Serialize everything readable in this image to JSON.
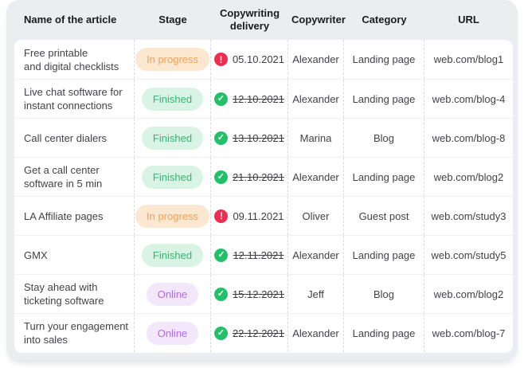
{
  "colors": {
    "card_bg": "#ecedf1",
    "in_progress_bg": "#fce7d1",
    "in_progress_text": "#f4a156",
    "finished_bg": "#d9f4e4",
    "finished_text": "#33b571",
    "online_bg": "#f3e7fb",
    "online_text": "#b267ee",
    "overdue_icon": "#ee2d4f",
    "done_icon": "#23c06a"
  },
  "table": {
    "columns": [
      "Name of the article",
      "Stage",
      "Copywriting delivery",
      "Copywriter",
      "Category",
      "URL"
    ],
    "rows": [
      {
        "name_lines": [
          "Free printable",
          "and digital checklists"
        ],
        "stage": {
          "label": "In progress",
          "type": "in-progress"
        },
        "delivery": {
          "date": "05.10.2021",
          "status": "overdue",
          "struck": false
        },
        "copywriter": "Alexander",
        "category": "Landing page",
        "url": "web.com/blog1"
      },
      {
        "name_lines": [
          "Live chat software for",
          "instant connections"
        ],
        "stage": {
          "label": "Finished",
          "type": "finished"
        },
        "delivery": {
          "date": "12.10.2021",
          "status": "done",
          "struck": true
        },
        "copywriter": "Alexander",
        "category": "Landing page",
        "url": "web.com/blog-4"
      },
      {
        "name_lines": [
          "Call center dialers"
        ],
        "stage": {
          "label": "Finished",
          "type": "finished"
        },
        "delivery": {
          "date": "13.10.2021",
          "status": "done",
          "struck": true
        },
        "copywriter": "Marina",
        "category": "Blog",
        "url": "web.com/blog-8"
      },
      {
        "name_lines": [
          "Get a call center",
          "software in 5 min"
        ],
        "stage": {
          "label": "Finished",
          "type": "finished"
        },
        "delivery": {
          "date": "21.10.2021",
          "status": "done",
          "struck": true
        },
        "copywriter": "Alexander",
        "category": "Landing page",
        "url": "web.com/blog2"
      },
      {
        "name_lines": [
          "LA Affiliate pages"
        ],
        "stage": {
          "label": "In progress",
          "type": "in-progress"
        },
        "delivery": {
          "date": "09.11.2021",
          "status": "overdue",
          "struck": false
        },
        "copywriter": "Oliver",
        "category": "Guest post",
        "url": "web.com/study3"
      },
      {
        "name_lines": [
          "GMX"
        ],
        "stage": {
          "label": "Finished",
          "type": "finished"
        },
        "delivery": {
          "date": "12.11.2021",
          "status": "done",
          "struck": true
        },
        "copywriter": "Alexander",
        "category": "Landing page",
        "url": "web.com/study5"
      },
      {
        "name_lines": [
          "Stay ahead with",
          "ticketing software"
        ],
        "stage": {
          "label": "Online",
          "type": "online"
        },
        "delivery": {
          "date": "15.12.2021",
          "status": "done",
          "struck": true
        },
        "copywriter": "Jeff",
        "category": "Blog",
        "url": "web.com/blog2"
      },
      {
        "name_lines": [
          "Turn your engagement",
          "into sales"
        ],
        "stage": {
          "label": "Online",
          "type": "online"
        },
        "delivery": {
          "date": "22.12.2021",
          "status": "done",
          "struck": true
        },
        "copywriter": "Alexander",
        "category": "Landing page",
        "url": "web.com/blog-7"
      }
    ]
  }
}
